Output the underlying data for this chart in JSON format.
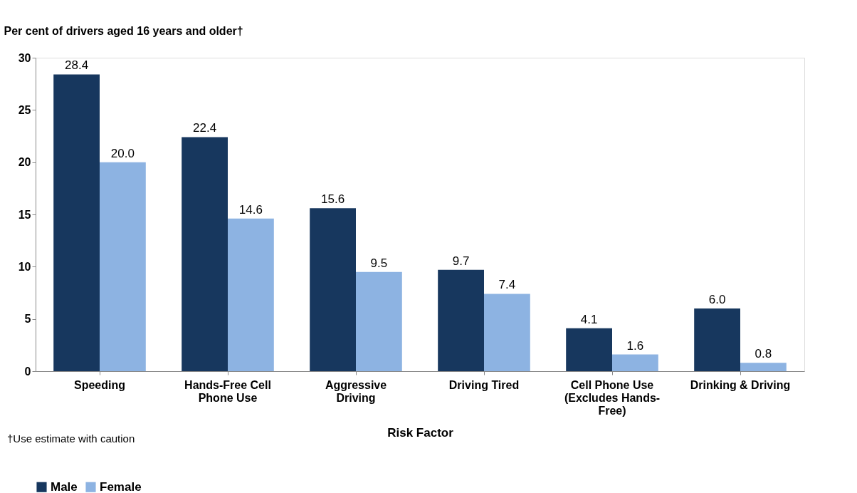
{
  "chart_data": {
    "type": "bar",
    "ylabel": "Per cent of drivers aged 16 years and older†",
    "xlabel": "Risk Factor",
    "categories": [
      "Speeding",
      "Hands-Free Cell\nPhone Use",
      "Aggressive\nDriving",
      "Driving Tired",
      "Cell Phone Use\n(Excludes Hands-\nFree)",
      "Drinking & Driving"
    ],
    "series": [
      {
        "name": "Male",
        "color": "#17375e",
        "values": [
          28.4,
          22.4,
          15.6,
          9.7,
          4.1,
          6.0
        ],
        "value_labels": [
          "28.4",
          "22.4",
          "15.6",
          "9.7",
          "4.1",
          "6.0"
        ]
      },
      {
        "name": "Female",
        "color": "#8db3e2",
        "values": [
          20.0,
          14.6,
          9.5,
          7.4,
          1.6,
          0.8
        ],
        "value_labels": [
          "20.0",
          "14.6",
          "9.5",
          "7.4",
          "1.6",
          "0.8"
        ]
      }
    ],
    "ylim": [
      0,
      30
    ],
    "yticks": [
      0,
      5,
      10,
      15,
      20,
      25,
      30
    ],
    "grid": false,
    "legend": "bottom",
    "annotations": [
      "†Use estimate with caution"
    ]
  }
}
